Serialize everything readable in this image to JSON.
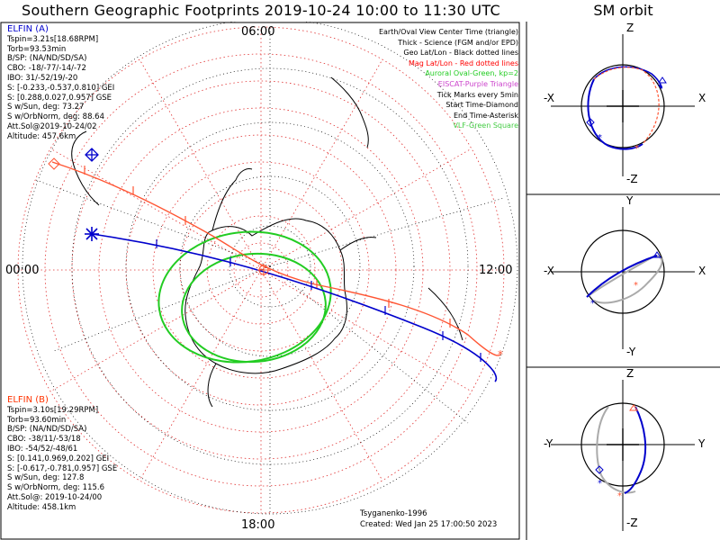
{
  "title": "Southern Geographic Footprints 2019-10-24 10:00 to 11:30 UTC",
  "orbit_title": "SM orbit",
  "clock_labels": {
    "top": "06:00",
    "left": "00:00",
    "right": "12:00",
    "bottom": "18:00"
  },
  "elfin_a": {
    "name": "ELFIN (A)",
    "lines": [
      "Tspin=3.21s[18.68RPM]",
      "Torb=93.53min",
      "B/SP: (NA/ND/SD/SA)",
      "CBO: -18/-77/-14/-72",
      "IBO: 31/-52/19/-20",
      "S: [-0.233,-0.537,0.810] GEI",
      "S: [0.288,0.027,0.957] GSE",
      "S w/Sun, deg: 73.27",
      "S w/OrbNorm, deg: 88.64",
      "Att.Sol@2019-10-24/02",
      "Altitude: 457.6km"
    ],
    "color": "#0000cc"
  },
  "elfin_b": {
    "name": "ELFIN (B)",
    "lines": [
      "Tspin=3.10s[19.29RPM]",
      "Torb=93.60min",
      "B/SP: (NA/ND/SD/SA)",
      "CBO: -38/11/-53/18",
      "IBO: -54/52/-48/61",
      "S: [0.141,0.969,0.202] GEI",
      "S: [-0.617,-0.781,0.957] GSE",
      "S w/Sun, deg: 127.8",
      "S w/OrbNorm, deg: 115.6",
      "Att.Sol@: 2019-10-24/00",
      "Altitude: 458.1km"
    ],
    "color": "#ff3300"
  },
  "legend": [
    {
      "text": "Earth/Oval View Center Time (triangle)",
      "color": "#000000"
    },
    {
      "text": "Thick - Science (FGM and/or EPD)",
      "color": "#000000"
    },
    {
      "text": "Geo Lat/Lon - Black dotted lines",
      "color": "#000000"
    },
    {
      "text": "Mag Lat/Lon - Red dotted lines",
      "color": "#ff0000"
    },
    {
      "text": "Auroral Oval-Green, kp=2",
      "color": "#22cc22"
    },
    {
      "text": "EISCAT-Purple Triangle",
      "color": "#cc44cc"
    },
    {
      "text": "Tick Marks every 5min",
      "color": "#000000"
    },
    {
      "text": "Start Time-Diamond",
      "color": "#000000"
    },
    {
      "text": "End Time-Asterisk",
      "color": "#000000"
    },
    {
      "text": "VLF-Green Square",
      "color": "#44cc44"
    }
  ],
  "credit": {
    "author": "Tsyganenko-1996",
    "created": "Created: Wed Jan 25 17:00:50 2023"
  },
  "orbit_panels": [
    {
      "top": "Z",
      "bottom": "-Z",
      "left": "-X",
      "right": "X"
    },
    {
      "top": "Y",
      "bottom": "-Y",
      "left": "-X",
      "right": "X"
    },
    {
      "top": "Z",
      "bottom": "-Z",
      "left": "-Y",
      "right": "Y"
    }
  ],
  "colors": {
    "elfin_a": "#0000cc",
    "elfin_b": "#ff3300",
    "oval": "#22cc22",
    "mag_grid": "#ff0000"
  }
}
